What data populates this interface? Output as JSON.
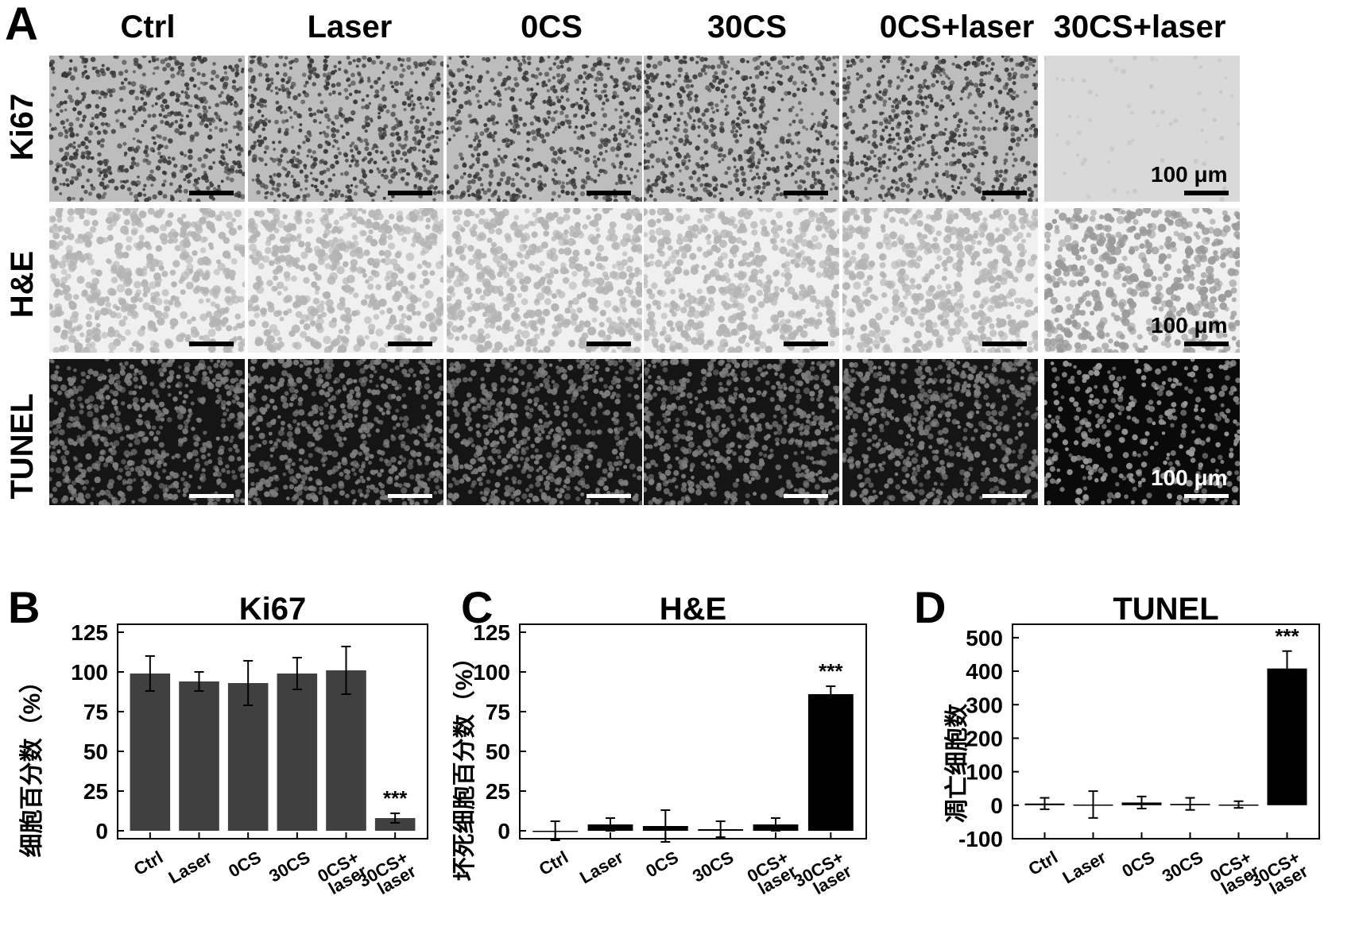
{
  "figure": {
    "panel_a_letter": "A",
    "columns": [
      "Ctrl",
      "Laser",
      "0CS",
      "30CS",
      "0CS+laser",
      "30CS+laser"
    ],
    "rows": [
      "Ki67",
      "H&E",
      "TUNEL"
    ],
    "scale_bar_label": "100 μm"
  },
  "chart_data": [
    {
      "type": "bar",
      "panel": "B",
      "title": "Ki67",
      "ylabel": "细胞百分数（%）",
      "categories": [
        "Ctrl",
        "Laser",
        "0CS",
        "30CS",
        "0CS+ laser",
        "30CS+ laser"
      ],
      "values": [
        99,
        94,
        93,
        99,
        101,
        8
      ],
      "errors": [
        11,
        6,
        14,
        10,
        15,
        3
      ],
      "annotations": [
        {
          "category": "30CS+ laser",
          "text": "***"
        }
      ],
      "ylim": [
        -5,
        130
      ],
      "yticks": [
        0,
        25,
        50,
        75,
        100,
        125
      ],
      "bar_color": "#404040"
    },
    {
      "type": "bar",
      "panel": "C",
      "title": "H&E",
      "ylabel": "坏死细胞百分数（%）",
      "categories": [
        "Ctrl",
        "Laser",
        "0CS",
        "30CS",
        "0CS+ laser",
        "30CS+ laser"
      ],
      "values": [
        0,
        4,
        3,
        1,
        4,
        86
      ],
      "errors": [
        6,
        4,
        10,
        5,
        4,
        5
      ],
      "annotations": [
        {
          "category": "30CS+ laser",
          "text": "***"
        }
      ],
      "ylim": [
        -5,
        130
      ],
      "yticks": [
        0,
        25,
        50,
        75,
        100,
        125
      ],
      "bar_color": "#000000"
    },
    {
      "type": "bar",
      "panel": "D",
      "title": "TUNEL",
      "ylabel": "凋亡细胞数",
      "categories": [
        "Ctrl",
        "Laser",
        "0CS",
        "30CS",
        "0CS+ laser",
        "30CS+ laser"
      ],
      "values": [
        5,
        2,
        8,
        4,
        2,
        408
      ],
      "errors": [
        17,
        40,
        18,
        18,
        10,
        52
      ],
      "annotations": [
        {
          "category": "30CS+ laser",
          "text": "***"
        }
      ],
      "ylim": [
        -100,
        540
      ],
      "yticks": [
        -100,
        0,
        100,
        200,
        300,
        400,
        500
      ],
      "bar_color": "#000000"
    }
  ]
}
